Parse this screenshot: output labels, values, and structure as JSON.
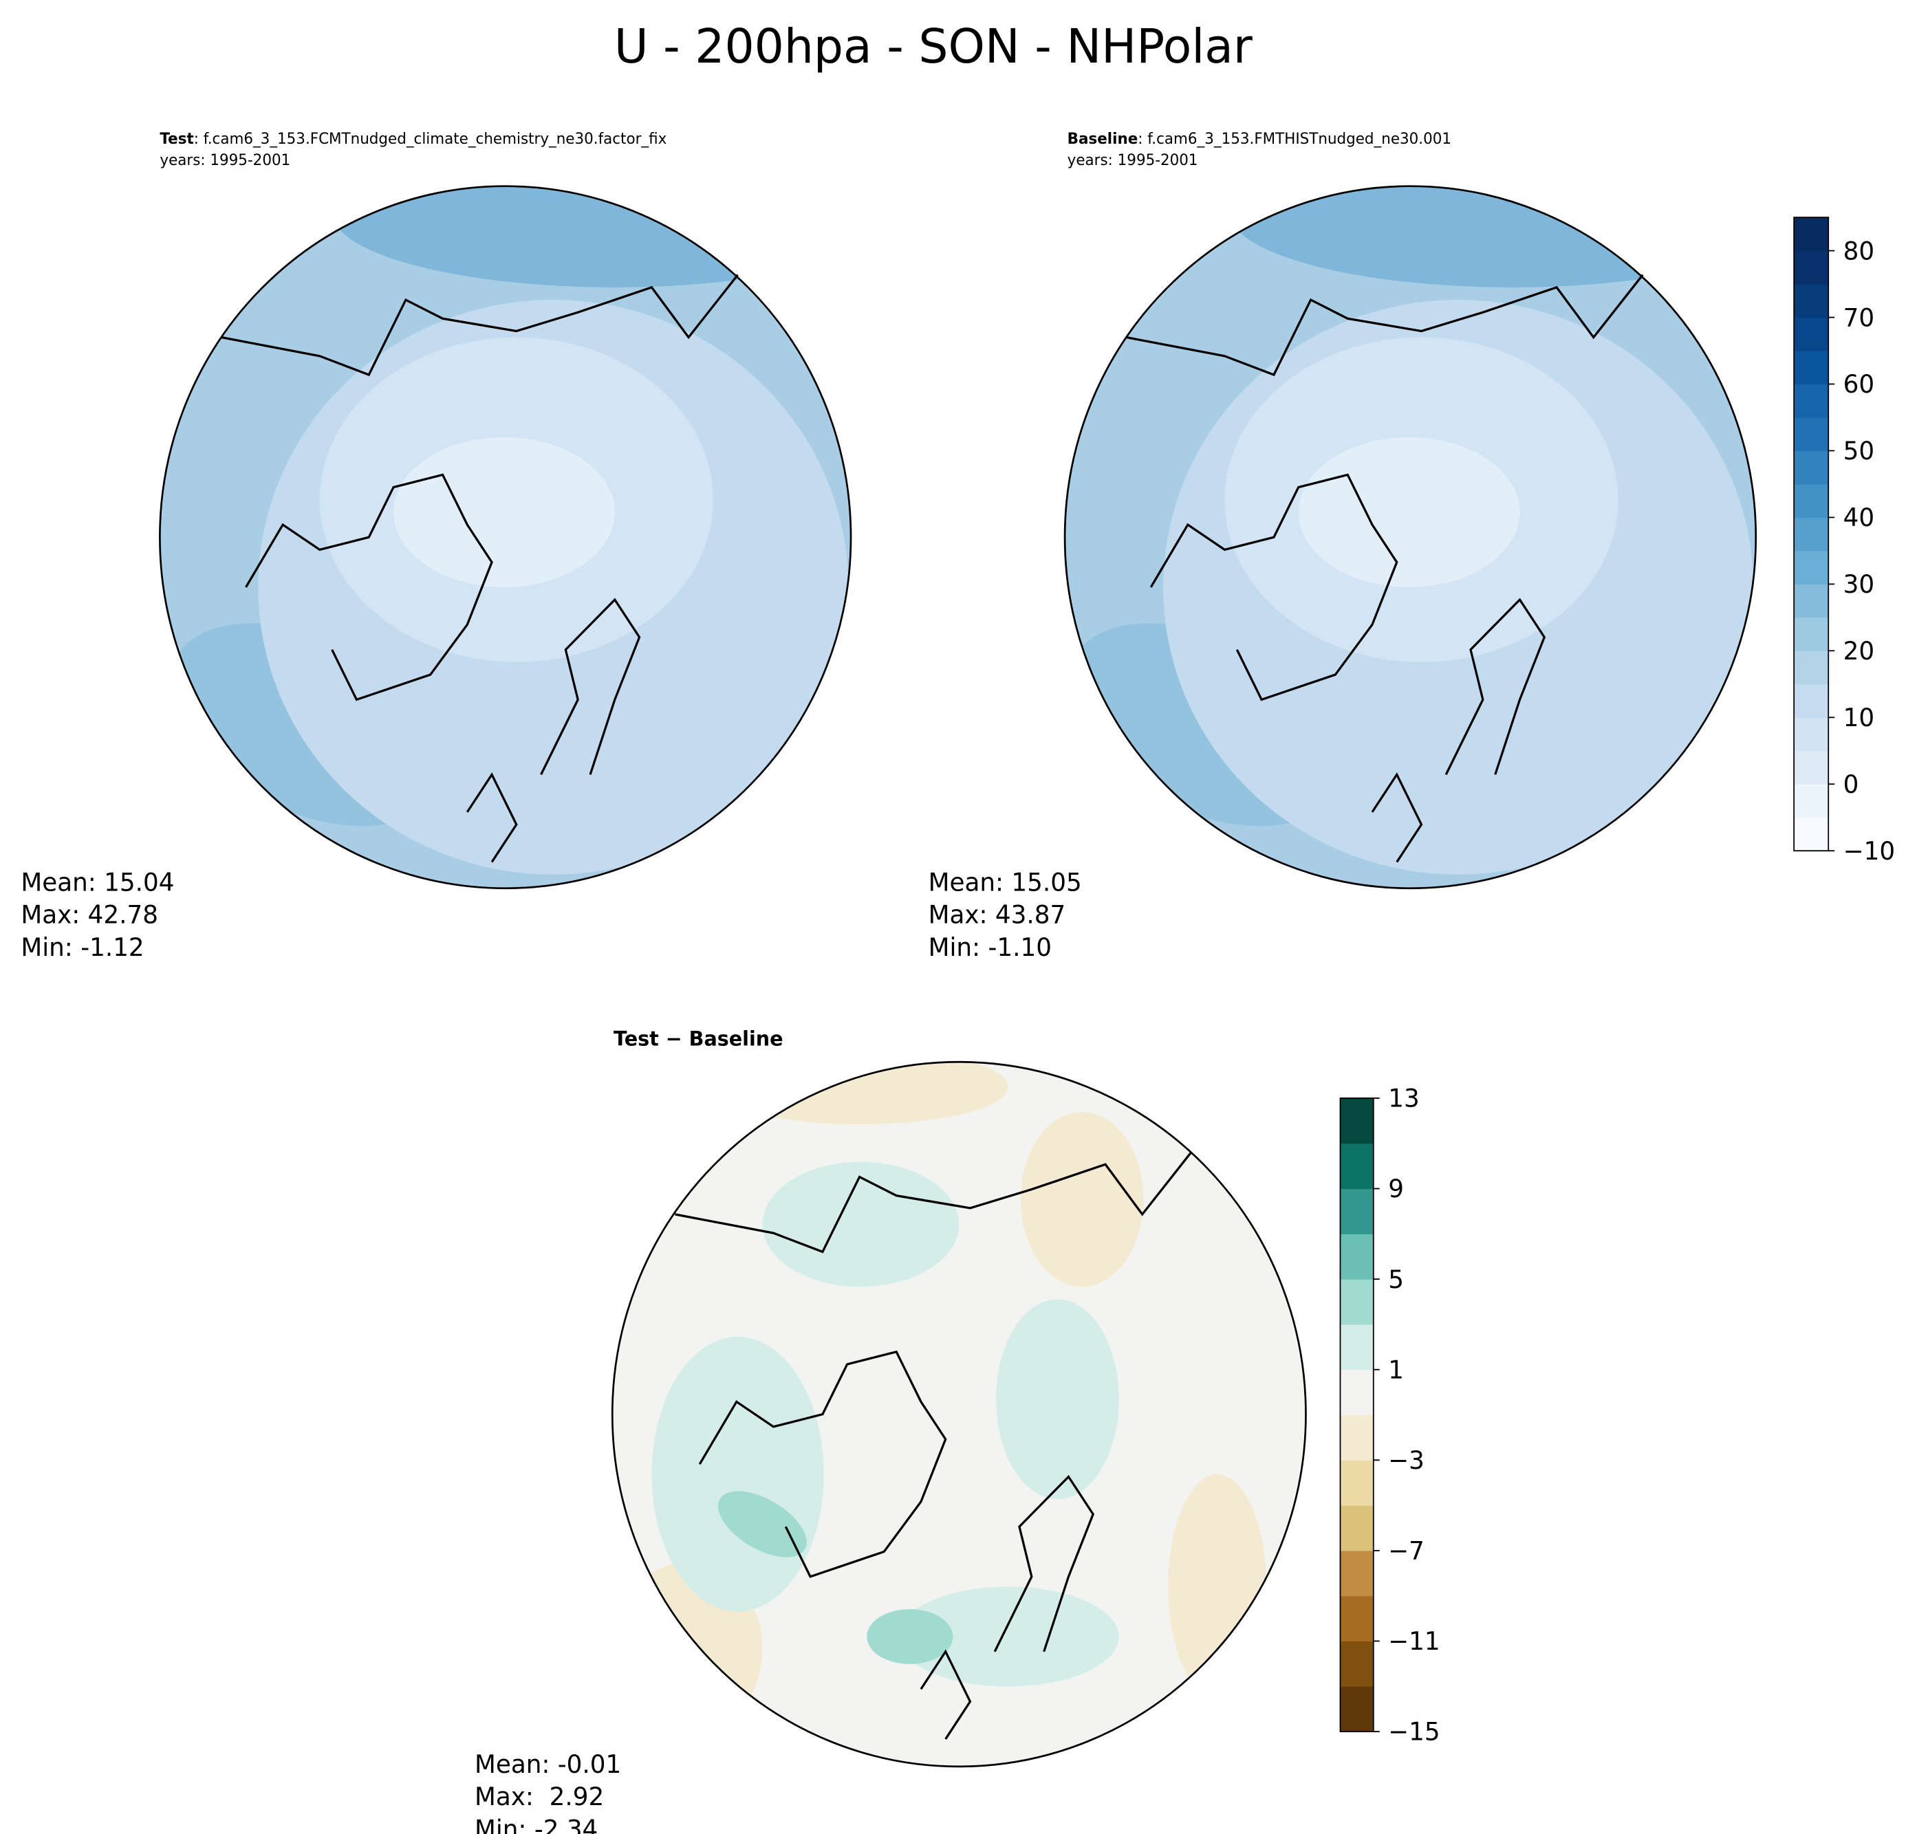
{
  "title": "U - 200hpa - SON - NHPolar",
  "chart_data": [
    {
      "type": "polar_contour_map",
      "label": "Test",
      "case": ": f.cam6_3_153.FCMTnudged_climate_chemistry_ne30.factor_fix",
      "years": "years: 1995-2001",
      "stats": [
        "Mean: 15.04",
        "Max: 42.78",
        "Min: -1.12"
      ]
    },
    {
      "type": "polar_contour_map",
      "label": "Baseline",
      "case": ": f.cam6_3_153.FMTHISTnudged_ne30.001",
      "years": "years: 1995-2001",
      "stats": [
        "Mean: 15.05",
        "Max: 43.87",
        "Min: -1.10"
      ],
      "colorbar": {
        "ylim": [
          -10,
          85
        ],
        "yticks": [
          {
            "value": -10,
            "label": "−10"
          },
          0,
          10,
          20,
          30,
          40,
          50,
          60,
          70,
          80
        ],
        "colors": [
          "#f7fbff",
          "#ebf3fb",
          "#deebf7",
          "#d2e3f3",
          "#c6dbef",
          "#b3d3e8",
          "#9ecae1",
          "#85bcdc",
          "#6baed6",
          "#57a0ce",
          "#4292c6",
          "#3282be",
          "#2171b5",
          "#1664ab",
          "#0b559f",
          "#08468c",
          "#083b7a",
          "#08306b",
          "#072a60"
        ]
      }
    },
    {
      "type": "polar_contour_map",
      "label": "Test − Baseline",
      "stats": [
        "Mean: -0.01",
        "Max:  2.92",
        "Min: -2.34"
      ],
      "colorbar": {
        "ylim": [
          -15,
          13
        ],
        "yticks": [
          {
            "value": -15,
            "label": "−15"
          },
          {
            "value": -11,
            "label": "−11"
          },
          {
            "value": -7,
            "label": "−7"
          },
          {
            "value": -3,
            "label": "−3"
          },
          1,
          5,
          9,
          13
        ],
        "colors": [
          "#5e3a0a",
          "#80500f",
          "#a66c22",
          "#c28b44",
          "#dbc179",
          "#ecdaa7",
          "#f4ead2",
          "#f3f4f2",
          "#d5ede8",
          "#a1dbd0",
          "#6bbfb3",
          "#33978f",
          "#0d7266",
          "#04493f"
        ]
      }
    }
  ]
}
